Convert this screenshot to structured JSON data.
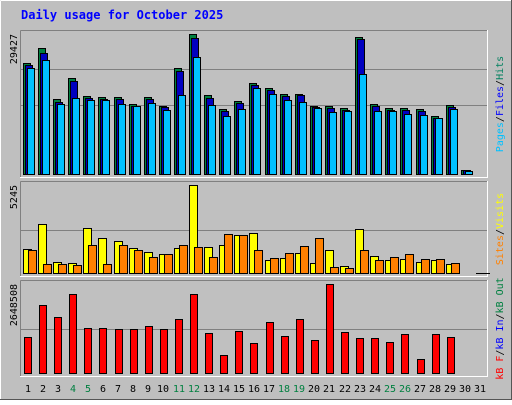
{
  "chart_data": {
    "type": "bar",
    "title": "Daily usage for October 2025",
    "categories": [
      "1",
      "2",
      "3",
      "4",
      "5",
      "6",
      "7",
      "8",
      "9",
      "10",
      "11",
      "12",
      "13",
      "14",
      "15",
      "16",
      "17",
      "18",
      "19",
      "20",
      "21",
      "22",
      "23",
      "24",
      "25",
      "26",
      "27",
      "28",
      "29",
      "30",
      "31"
    ],
    "weekend_days": [
      "4",
      "5",
      "11",
      "12",
      "18",
      "19",
      "25",
      "26"
    ],
    "panels": [
      {
        "id": "hits",
        "ymax": 29427,
        "ymax_label": "29427",
        "side_label_parts": [
          "Pages",
          "/",
          "Files",
          "/",
          "Hits"
        ],
        "series": [
          {
            "name": "Hits",
            "color": "#008040",
            "values": [
              23400,
              26600,
              15900,
              20200,
              16400,
              16200,
              16200,
              14900,
              16200,
              14500,
              22300,
              29427,
              16600,
              13800,
              15400,
              19300,
              18200,
              16900,
              17000,
              14500,
              14400,
              14000,
              28900,
              14800,
              14000,
              14000,
              13800,
              12400,
              14700,
              1100,
              0
            ]
          },
          {
            "name": "Files",
            "color": "#0000c0",
            "values": [
              23000,
              25500,
              15300,
              19600,
              16000,
              15800,
              15800,
              14500,
              15800,
              14100,
              21800,
              28500,
              16100,
              13300,
              15000,
              18800,
              17700,
              16400,
              16600,
              14100,
              14000,
              13600,
              28300,
              14400,
              13600,
              13600,
              13300,
              12000,
              14200,
              1000,
              0
            ]
          },
          {
            "name": "Pages",
            "color": "#00c0ff",
            "values": [
              22300,
              23900,
              14900,
              16100,
              15700,
              15600,
              14800,
              14300,
              15100,
              13500,
              16800,
              24600,
              14600,
              12300,
              13700,
              18100,
              17000,
              15600,
              15200,
              13900,
              13100,
              13400,
              21000,
              13300,
              13400,
              12800,
              12500,
              11900,
              13800,
              900,
              0
            ]
          }
        ]
      },
      {
        "id": "visits",
        "ymax": 5245,
        "ymax_label": "5245",
        "side_label_parts": [
          "Sites",
          "/",
          "Visits"
        ],
        "series": [
          {
            "name": "Visits",
            "color": "#ffff00",
            "values": [
              1450,
              2920,
              680,
              670,
              2730,
              2120,
              1960,
              1520,
              1310,
              1200,
              1530,
              5245,
              1600,
              1700,
              2270,
              2390,
              850,
              950,
              1210,
              620,
              1430,
              450,
              2660,
              1070,
              840,
              890,
              720,
              840,
              580,
              60,
              0
            ]
          },
          {
            "name": "Sites",
            "color": "#ff8000",
            "values": [
              1400,
              600,
              600,
              540,
              1680,
              600,
              1710,
              1400,
              1000,
              1150,
              1700,
              1600,
              1000,
              2370,
              2320,
              1400,
              930,
              1210,
              1670,
              2120,
              400,
              350,
              1430,
              850,
              1000,
              1180,
              900,
              890,
              620,
              60,
              0
            ]
          }
        ]
      },
      {
        "id": "kbytes",
        "ymax": 2648508,
        "ymax_label": "2648508",
        "side_label_parts": [
          "kB F",
          "/",
          "kB In",
          "/",
          "kB Out"
        ],
        "series": [
          {
            "name": "kB F",
            "color": "#ff0000",
            "values": [
              1080000,
              2020000,
              1680000,
              2360000,
              1340000,
              1340000,
              1320000,
              1320000,
              1420000,
              1310000,
              1620000,
              2360000,
              1210000,
              570000,
              1260000,
              910000,
              1520000,
              1120000,
              1610000,
              1000000,
              2648508,
              1250000,
              1050000,
              1050000,
              940000,
              1170000,
              440000,
              1170000,
              1080000,
              0,
              0
            ]
          }
        ]
      }
    ]
  },
  "colors": {
    "page_background": "#ffffff",
    "frame_background": "#bfbfbf",
    "plot_background": "#c0c0c0",
    "title_color": "#0000ff",
    "weekday_color": "#000000",
    "weekend_color": "#008040",
    "hits_label": "#00805f",
    "files_label": "#0000ff",
    "pages_label": "#00c0ff",
    "visits_label": "#ffff00",
    "sites_label": "#ff8000",
    "kbin_label": "#0000ff",
    "kbout_label": "#008040",
    "kbf_label": "#ff0000"
  }
}
